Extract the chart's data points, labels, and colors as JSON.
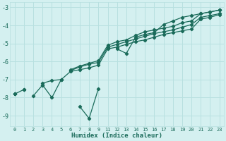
{
  "xlabel": "Humidex (Indice chaleur)",
  "background_color": "#d4f0f0",
  "grid_color": "#b8e0e0",
  "line_color": "#1a6b5a",
  "ylim": [
    -9.6,
    -2.7
  ],
  "yticks": [
    -9,
    -8,
    -7,
    -6,
    -5,
    -4,
    -3
  ],
  "xtick_labels": [
    "0",
    "1",
    "2",
    "3",
    "4",
    "5",
    "6",
    "7",
    "8",
    "9",
    "11",
    "12",
    "13",
    "14",
    "15",
    "16",
    "17",
    "18",
    "19",
    "20",
    "21",
    "22",
    "23"
  ],
  "series": [
    [
      null,
      -7.55,
      null,
      -7.3,
      -8.0,
      -7.0,
      null,
      -8.5,
      -9.15,
      -7.5,
      null,
      -5.3,
      -5.55,
      -4.65,
      -4.5,
      -4.4,
      -3.95,
      -3.75,
      -3.55,
      -3.45,
      -3.35,
      -3.25,
      -3.15
    ],
    [
      null,
      null,
      -7.9,
      -7.3,
      null,
      null,
      null,
      null,
      null,
      null,
      null,
      null,
      null,
      null,
      null,
      null,
      null,
      null,
      null,
      null,
      null,
      null,
      null
    ],
    [
      -7.8,
      -7.55,
      null,
      -7.2,
      -7.05,
      -7.0,
      -6.55,
      -6.45,
      -6.35,
      -6.2,
      -5.3,
      -5.2,
      -5.05,
      -4.9,
      -4.8,
      -4.65,
      -4.5,
      -4.4,
      -4.3,
      -4.2,
      -3.65,
      -3.55,
      -3.4
    ],
    [
      -7.8,
      null,
      null,
      null,
      null,
      null,
      -6.5,
      -6.3,
      -6.15,
      -6.05,
      -5.2,
      -5.05,
      -4.9,
      -4.75,
      -4.6,
      -4.45,
      -4.35,
      -4.25,
      -4.1,
      -3.95,
      -3.55,
      -3.45,
      -3.35
    ],
    [
      -7.8,
      null,
      null,
      null,
      null,
      null,
      -6.45,
      -6.25,
      -6.1,
      -5.95,
      -5.1,
      -4.9,
      -4.8,
      -4.55,
      -4.35,
      -4.25,
      -4.15,
      -4.05,
      -3.85,
      -3.75,
      -3.35,
      -3.25,
      -3.15
    ]
  ]
}
